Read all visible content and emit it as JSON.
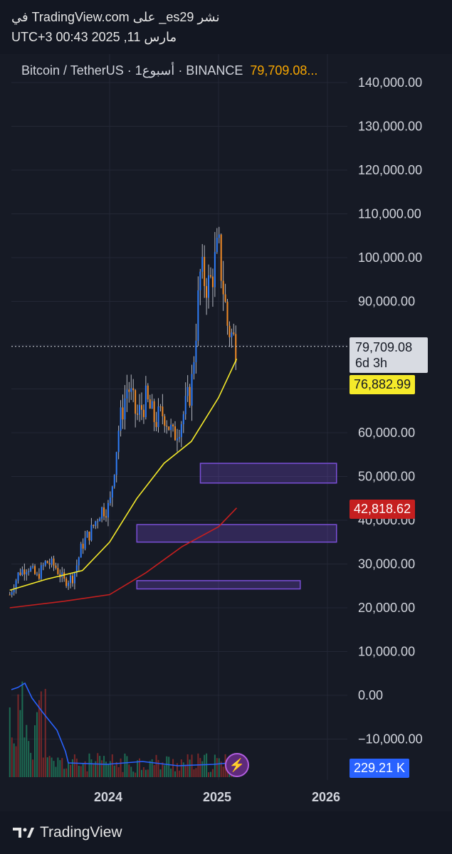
{
  "header": {
    "line1": "نشر es29_ على TradingView.com في",
    "line2": "مارس 11, 2025 00:43 UTC+3"
  },
  "legend": {
    "symbol": "Bitcoin / TetherUS · أسبوع1 · BINANCE",
    "price": "79,709.08..."
  },
  "tags": {
    "price": "79,709.08",
    "countdown": "6d 3h",
    "ma_short": "76,882.99",
    "ma_long": "42,818.62",
    "volume": "229.21 K"
  },
  "footer": {
    "brand": "TradingView"
  },
  "colors": {
    "background": "#161a25",
    "up": "#2f7cf6",
    "down": "#f28c28",
    "ma_short": "#f5ea2a",
    "ma_long": "#c51f1f",
    "zone": "#7b4fd8",
    "volume_line": "#2962ff"
  },
  "chart_data": {
    "type": "candlestick",
    "y_ticks": [
      "140,000.00",
      "130,000.00",
      "120,000.00",
      "110,000.00",
      "100,000.00",
      "90,000.00",
      "60,000.00",
      "50,000.00",
      "40,000.00",
      "30,000.00",
      "20,000.00",
      "10,000.00",
      "0.00",
      "−10,000.00"
    ],
    "y_tick_values": [
      140000,
      130000,
      120000,
      110000,
      100000,
      90000,
      60000,
      50000,
      40000,
      30000,
      20000,
      10000,
      0,
      -10000
    ],
    "x_ticks": [
      "2024",
      "2025",
      "2026"
    ],
    "x_tick_values": [
      "2024-01",
      "2025-01",
      "2026-01"
    ],
    "x_range": [
      "2023-02",
      "2026-02"
    ],
    "ylim": [
      -14000,
      145000
    ],
    "last_price": 79709.08,
    "ma_short_last": 76882.99,
    "ma_long_last": 42818.62,
    "zones": [
      {
        "x_start": "2024-11",
        "x_end": "2026-02",
        "y_low": 48500,
        "y_high": 53000
      },
      {
        "x_start": "2024-04",
        "x_end": "2026-02",
        "y_low": 35000,
        "y_high": 39000
      },
      {
        "x_start": "2024-04",
        "x_end": "2025-10",
        "y_low": 24300,
        "y_high": 26200
      }
    ],
    "price_path": [
      [
        "2023-02",
        23000
      ],
      [
        "2023-03",
        28000
      ],
      [
        "2023-04",
        29500
      ],
      [
        "2023-05",
        27000
      ],
      [
        "2023-06",
        30500
      ],
      [
        "2023-07",
        29500
      ],
      [
        "2023-08",
        26000
      ],
      [
        "2023-09",
        27000
      ],
      [
        "2023-10",
        34500
      ],
      [
        "2023-11",
        37700
      ],
      [
        "2023-12",
        42300
      ],
      [
        "2024-01",
        43000
      ],
      [
        "2024-02",
        61000
      ],
      [
        "2024-03",
        71000
      ],
      [
        "2024-04",
        63500
      ],
      [
        "2024-05",
        67500
      ],
      [
        "2024-06",
        62700
      ],
      [
        "2024-07",
        64600
      ],
      [
        "2024-08",
        59000
      ],
      [
        "2024-09",
        63300
      ],
      [
        "2024-10",
        70200
      ],
      [
        "2024-11",
        96400
      ],
      [
        "2024-12",
        93400
      ],
      [
        "2025-01",
        102400
      ],
      [
        "2025-02",
        84400
      ],
      [
        "2025-03",
        79709
      ]
    ],
    "ma_short_path": [
      [
        "2023-02",
        24000
      ],
      [
        "2023-06",
        26500
      ],
      [
        "2023-10",
        28500
      ],
      [
        "2024-01",
        35000
      ],
      [
        "2024-04",
        45000
      ],
      [
        "2024-07",
        53000
      ],
      [
        "2024-10",
        58000
      ],
      [
        "2025-01",
        68000
      ],
      [
        "2025-03",
        76883
      ]
    ],
    "ma_long_path": [
      [
        "2023-02",
        20000
      ],
      [
        "2023-08",
        21500
      ],
      [
        "2024-01",
        23000
      ],
      [
        "2024-05",
        28000
      ],
      [
        "2024-09",
        34000
      ],
      [
        "2025-01",
        38500
      ],
      [
        "2025-03",
        42819
      ]
    ]
  }
}
